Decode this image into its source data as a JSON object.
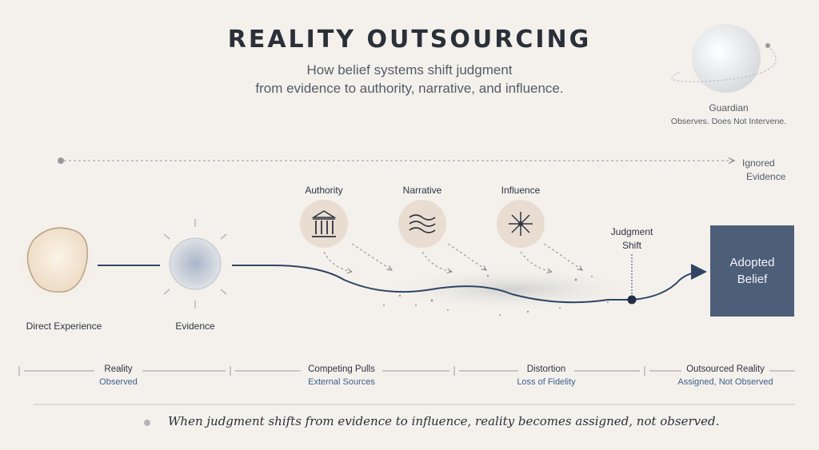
{
  "header": {
    "title": "REALITY OUTSOURCING",
    "subtitle_line1": "How belief systems shift judgment",
    "subtitle_line2": "from evidence to authority, narrative, and influence."
  },
  "guardian": {
    "title": "Guardian",
    "description": "Observes. Does Not Intervene."
  },
  "ignored_evidence": [
    "Ignored",
    "Evidence"
  ],
  "nodes": {
    "direct_experience": "Direct Experience",
    "evidence": "Evidence"
  },
  "pulls": [
    {
      "label": "Authority",
      "icon": "columns-icon"
    },
    {
      "label": "Narrative",
      "icon": "waves-icon"
    },
    {
      "label": "Influence",
      "icon": "starburst-icon"
    }
  ],
  "judgment_shift": [
    "Judgment",
    "Shift"
  ],
  "adopted_belief": "Adopted Belief",
  "phases": [
    {
      "title": "Reality",
      "subtitle": "Observed"
    },
    {
      "title": "Competing Pulls",
      "subtitle": "External Sources"
    },
    {
      "title": "Distortion",
      "subtitle": "Loss of Fidelity"
    },
    {
      "title": "Outsourced Reality",
      "subtitle": "Assigned, Not Observed"
    }
  ],
  "quote": "When judgment shifts from evidence to influence, reality becomes assigned, not observed.",
  "colors": {
    "background": "#f4f1ec",
    "line": "#2f4563",
    "box": "#4d5e78",
    "accent_text": "#3c5f8c"
  }
}
